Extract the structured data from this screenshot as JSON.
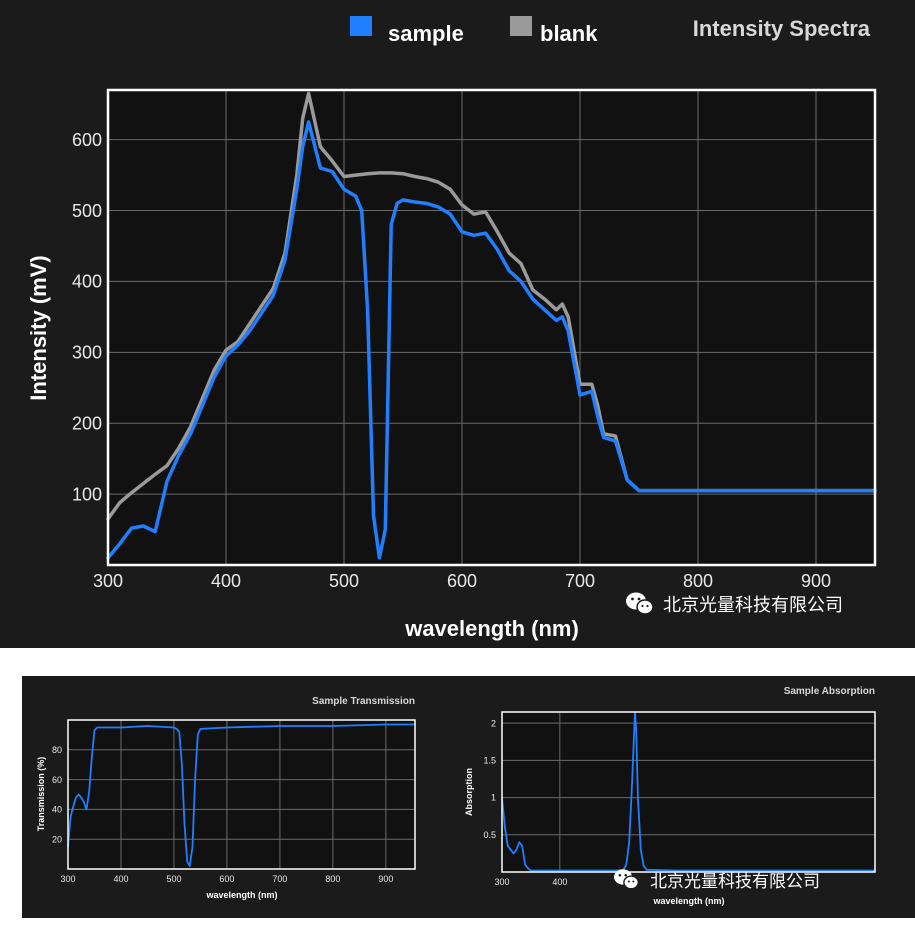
{
  "colors": {
    "background": "#1b1b1b",
    "sample": "#1f7fff",
    "blank": "#9a9a9a",
    "grid": "#6a6a6a",
    "axis": "#ffffff"
  },
  "watermark": {
    "icon": "wechat-icon",
    "text": "北京光量科技有限公司"
  },
  "chart_data": [
    {
      "type": "line",
      "title": "Intensity Spectra",
      "xlabel": "wavelength (nm)",
      "ylabel": "Intensity (mV)",
      "xlim": [
        300,
        950
      ],
      "ylim": [
        0,
        670
      ],
      "xticks": [
        300,
        400,
        500,
        600,
        700,
        800,
        900
      ],
      "yticks": [
        100,
        200,
        300,
        400,
        500,
        600
      ],
      "grid": true,
      "legend": "top",
      "series": [
        {
          "name": "sample",
          "color": "#1f7fff",
          "x": [
            300,
            310,
            320,
            330,
            340,
            350,
            360,
            370,
            380,
            390,
            400,
            410,
            420,
            430,
            440,
            450,
            460,
            465,
            470,
            480,
            490,
            500,
            510,
            515,
            520,
            525,
            530,
            535,
            540,
            545,
            550,
            560,
            570,
            580,
            590,
            600,
            610,
            620,
            630,
            640,
            650,
            660,
            670,
            680,
            685,
            690,
            700,
            710,
            715,
            720,
            730,
            740,
            750,
            800,
            850,
            900,
            950
          ],
          "y": [
            10,
            30,
            52,
            55,
            47,
            118,
            155,
            185,
            225,
            265,
            295,
            310,
            330,
            355,
            380,
            430,
            530,
            590,
            625,
            560,
            555,
            530,
            520,
            500,
            360,
            70,
            10,
            50,
            480,
            510,
            515,
            512,
            510,
            505,
            495,
            470,
            465,
            468,
            445,
            415,
            400,
            375,
            360,
            345,
            350,
            330,
            240,
            245,
            210,
            180,
            175,
            120,
            105,
            105,
            105,
            105,
            105
          ]
        },
        {
          "name": "blank",
          "color": "#9a9a9a",
          "x": [
            300,
            310,
            320,
            330,
            340,
            350,
            360,
            370,
            380,
            390,
            400,
            410,
            420,
            430,
            440,
            450,
            460,
            465,
            470,
            480,
            490,
            500,
            510,
            520,
            530,
            540,
            550,
            560,
            570,
            580,
            590,
            600,
            610,
            620,
            630,
            640,
            650,
            660,
            670,
            680,
            685,
            690,
            700,
            710,
            715,
            720,
            730,
            740,
            750,
            800,
            850,
            900,
            950
          ],
          "y": [
            65,
            88,
            102,
            115,
            128,
            140,
            165,
            195,
            235,
            275,
            303,
            315,
            340,
            365,
            390,
            440,
            550,
            630,
            665,
            590,
            570,
            548,
            550,
            552,
            553,
            553,
            552,
            548,
            545,
            540,
            530,
            508,
            495,
            498,
            470,
            440,
            425,
            388,
            375,
            360,
            368,
            350,
            255,
            255,
            225,
            185,
            182,
            120,
            105,
            105,
            105,
            105,
            105
          ]
        }
      ]
    },
    {
      "type": "line",
      "title": "Sample Transmission",
      "xlabel": "wavelength (nm)",
      "ylabel": "Transmission (%)",
      "xlim": [
        300,
        955
      ],
      "ylim": [
        0,
        100
      ],
      "xticks": [
        300,
        400,
        500,
        600,
        700,
        800,
        900
      ],
      "yticks": [
        20,
        40,
        60,
        80
      ],
      "grid": true,
      "series": [
        {
          "color": "#1f7fff",
          "x": [
            300,
            305,
            310,
            315,
            320,
            325,
            330,
            335,
            340,
            345,
            350,
            355,
            400,
            450,
            500,
            505,
            510,
            515,
            520,
            525,
            530,
            535,
            540,
            545,
            550,
            600,
            700,
            800,
            900,
            955
          ],
          "y": [
            15,
            35,
            42,
            48,
            50,
            48,
            45,
            40,
            52,
            75,
            93,
            95,
            95,
            96,
            95,
            94,
            92,
            70,
            30,
            5,
            2,
            15,
            60,
            90,
            94,
            95,
            96,
            96,
            97,
            97
          ]
        }
      ]
    },
    {
      "type": "line",
      "title": "Sample Absorption",
      "xlabel": "wavelength (nm)",
      "ylabel": "Absorption",
      "xlim": [
        300,
        945
      ],
      "ylim": [
        0,
        2.15
      ],
      "xticks": [
        300,
        400
      ],
      "yticks": [
        0.5,
        1,
        1.5,
        2
      ],
      "grid": true,
      "series": [
        {
          "color": "#1f7fff",
          "x": [
            300,
            305,
            310,
            315,
            320,
            325,
            330,
            335,
            340,
            345,
            350,
            400,
            500,
            510,
            515,
            520,
            525,
            528,
            530,
            532,
            535,
            540,
            545,
            550,
            600,
            700,
            800,
            900,
            945
          ],
          "y": [
            1.0,
            0.6,
            0.35,
            0.3,
            0.25,
            0.3,
            0.4,
            0.35,
            0.1,
            0.05,
            0.02,
            0.02,
            0.02,
            0.03,
            0.1,
            0.4,
            1.2,
            1.8,
            2.15,
            1.9,
            1.0,
            0.3,
            0.08,
            0.03,
            0.02,
            0.02,
            0.02,
            0.02,
            0.02
          ]
        }
      ]
    }
  ]
}
